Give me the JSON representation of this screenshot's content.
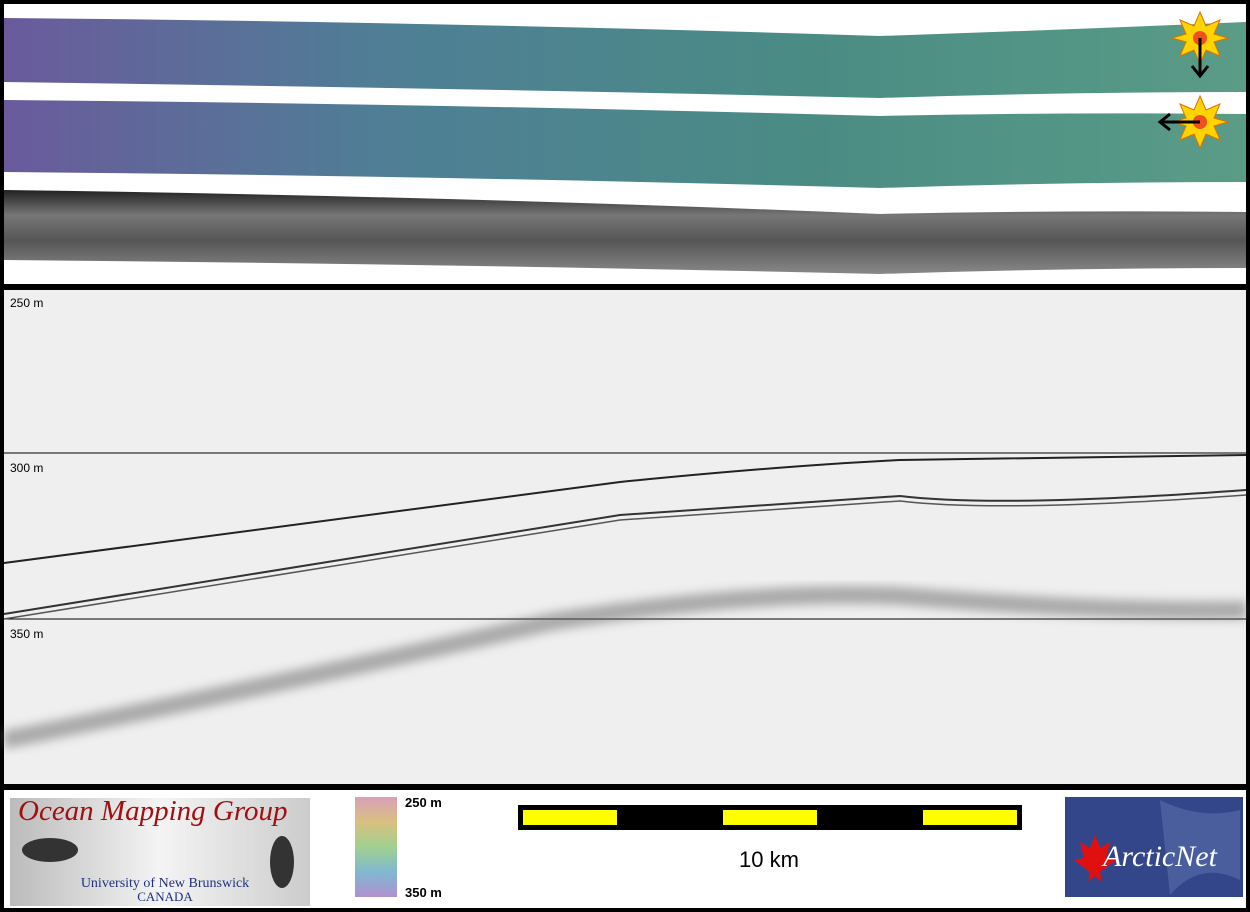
{
  "profile": {
    "depth_labels": [
      "250 m",
      "300 m",
      "350 m"
    ]
  },
  "legend": {
    "group_name": "Ocean Mapping Group",
    "university": "University of New Brunswick",
    "country": "CANADA",
    "colorbar_top": "250 m",
    "colorbar_bottom": "350 m",
    "scale_label": "10 km",
    "partner": "ArcticNet"
  }
}
